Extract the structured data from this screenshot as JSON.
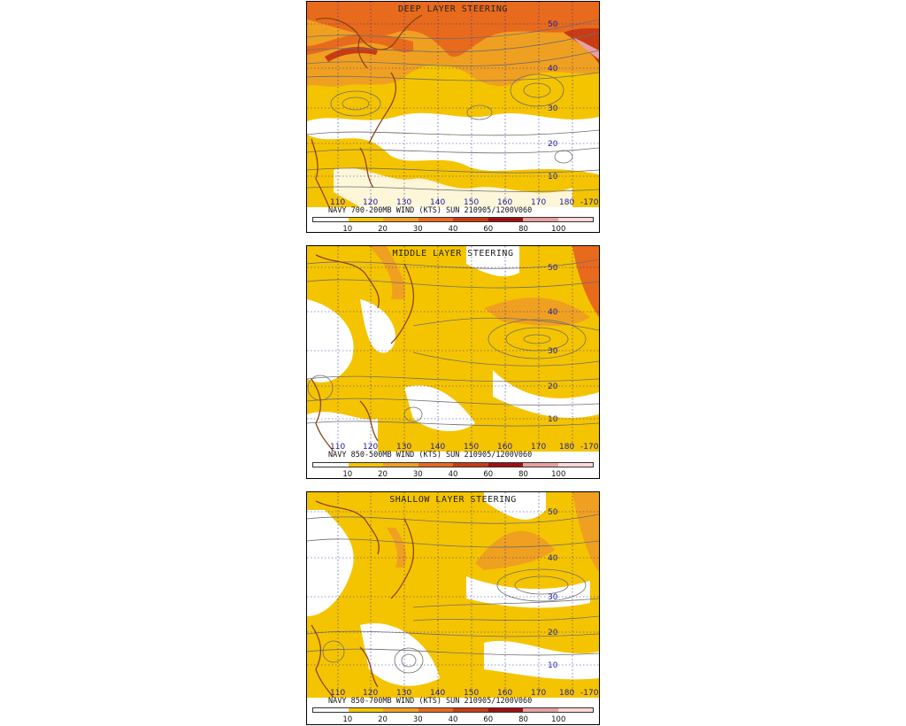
{
  "panels": [
    {
      "id": "deep",
      "title": "DEEP LAYER STEERING",
      "footer": "NAVY 700-200MB WIND (KTS) SUN 210905/1200V060"
    },
    {
      "id": "middle",
      "title": "MIDDLE LAYER STEERING",
      "footer": "NAVY 850-500MB WIND (KTS) SUN 210905/1200V060"
    },
    {
      "id": "shallow",
      "title": "SHALLOW LAYER STEERING",
      "footer": "NAVY 850-700MB WIND (KTS) SUN 210905/1200V060"
    }
  ],
  "colorbar": {
    "ticks": [
      "10",
      "20",
      "30",
      "40",
      "60",
      "80",
      "100"
    ],
    "colors": [
      "#ffffff",
      "#f5c400",
      "#f0a020",
      "#e86a1c",
      "#c83c14",
      "#a01010",
      "#e8a0a0",
      "#ffd8d8"
    ]
  },
  "longitude_labels": [
    "110",
    "120",
    "130",
    "140",
    "150",
    "160",
    "170",
    "180",
    "-170"
  ],
  "latitude_labels": [
    "50",
    "40",
    "30",
    "20",
    "10"
  ]
}
